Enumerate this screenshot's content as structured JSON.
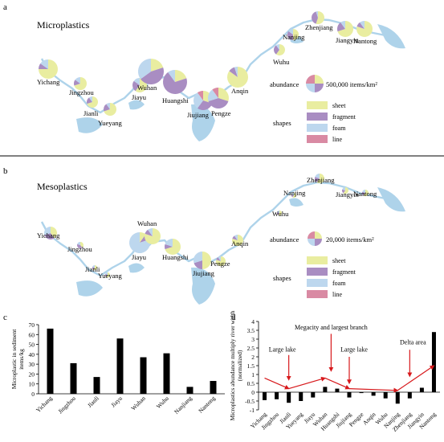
{
  "panel_labels": {
    "a": "a",
    "b": "b",
    "c": "c",
    "d": "d"
  },
  "colors": {
    "sheet": "#e9eda0",
    "fragment": "#a98dc2",
    "foam": "#bdd7ee",
    "line": "#d98aa3",
    "river": "#aed3ea"
  },
  "map_a": {
    "title": "Microplastics",
    "cities": [
      "Yichang",
      "Jingzhou",
      "Jianli",
      "Yueyang",
      "Jiayu",
      "Wuhan",
      "Huangshi",
      "Jiujiang",
      "Pengze",
      "Anqin",
      "Wuhu",
      "Nanjing",
      "Zhenjiang",
      "Jiangyin",
      "Nantong"
    ],
    "legend": {
      "abundance_label": "abundance",
      "abundance_value": "500,000 items/km²",
      "shapes_label": "shapes",
      "shapes": [
        "sheet",
        "fragment",
        "foam",
        "line"
      ]
    }
  },
  "map_b": {
    "title": "Mesoplastics",
    "cities": [
      "Yichang",
      "Jingzhou",
      "Jianli",
      "Yueyang",
      "Jiayu",
      "Wuhan",
      "Huangshi",
      "Jiujiang",
      "Pengze",
      "Anqin",
      "Wuhu",
      "Nanjing",
      "Zhenjiang",
      "Jiangyin",
      "Nantong"
    ],
    "legend": {
      "abundance_label": "abundance",
      "abundance_value": "20,000 items/km²",
      "shapes_label": "shapes",
      "shapes": [
        "sheet",
        "fragment",
        "foam",
        "line"
      ]
    }
  },
  "chart_data": [
    {
      "type": "bar",
      "ylabel": "Microplastic in sediment items/kg",
      "ylim": [
        0,
        70
      ],
      "yticks": [
        0,
        10,
        20,
        30,
        40,
        50,
        60,
        70
      ],
      "categories": [
        "Yichang",
        "Jingzhou",
        "Jianli",
        "Jiayu",
        "Wuhan",
        "Wuhu",
        "Nanjiang",
        "Nantong"
      ],
      "values": [
        66,
        31,
        17,
        56,
        37,
        41,
        7,
        13
      ]
    },
    {
      "type": "bar",
      "ylabel": "Microplastics abundance multiply river width (normalized)",
      "ylim": [
        -1,
        4
      ],
      "yticks": [
        -1,
        -0.5,
        0,
        0.5,
        1,
        1.5,
        2,
        2.5,
        3,
        3.5,
        4
      ],
      "yticklabels": [
        "-1",
        "-0.5",
        "0",
        "0.5",
        "1",
        "1.5",
        "2",
        "2.5",
        "3",
        "3.5",
        "4"
      ],
      "categories": [
        "Yichang",
        "Jingzhou",
        "Jianli",
        "Yueyang",
        "Jiayu",
        "Wuhan",
        "Huangshi",
        "Jiujiang",
        "Pengze",
        "Anqin",
        "Wuhu",
        "Nanjing",
        "Zhenjiang",
        "Jiangyin",
        "Nantong"
      ],
      "values": [
        -0.45,
        -0.4,
        -0.6,
        -0.5,
        -0.3,
        0.3,
        0.2,
        -0.3,
        -0.05,
        -0.2,
        -0.35,
        -0.65,
        -0.35,
        0.25,
        3.4
      ],
      "annotations": [
        "Large lake",
        "Megacity and largest branch",
        "Large lake",
        "Delta area"
      ]
    }
  ]
}
